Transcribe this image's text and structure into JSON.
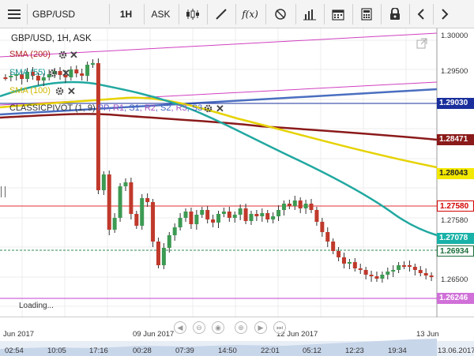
{
  "toolbar": {
    "symbol": "GBP/USD",
    "timeframe": "1H",
    "price_type": "ASK",
    "function_label": "f(x)"
  },
  "chart": {
    "title": "GBP/USD, 1H, ASK",
    "loading": "Loading...",
    "indicators": [
      {
        "label": "SMA (200)",
        "color": "#b22222"
      },
      {
        "label": "SMA (55)",
        "color": "#20a0a0"
      },
      {
        "label": "SMA (100)",
        "color": "#e0c800"
      }
    ],
    "pivot": {
      "label_prefix": "CLASSICPIVOT (1, 9)",
      "items": [
        {
          "label": "PP",
          "color": "#6a5acd"
        },
        {
          "label": "R1",
          "color": "#a050c0"
        },
        {
          "label": "S1",
          "color": "#4060c0"
        },
        {
          "label": "R2",
          "color": "#a050c0"
        },
        {
          "label": "S2",
          "color": "#4060c0"
        },
        {
          "label": "R3",
          "color": "#a050c0"
        },
        {
          "label": "S3",
          "color": "#4060c0"
        }
      ]
    }
  },
  "price_axis": {
    "ticks": [
      "1.30000",
      "1.29500",
      "1.27580",
      "1.26500"
    ],
    "tags": [
      {
        "value": "1.29030",
        "bg": "#1a2f9c",
        "fg": "#ffffff"
      },
      {
        "value": "1.28471",
        "bg": "#8b1a1a",
        "fg": "#ffffff"
      },
      {
        "value": "1.28043",
        "bg": "#f3e800",
        "fg": "#222222"
      },
      {
        "value": "1.27580",
        "bg": "#ffffff",
        "fg": "#d40000"
      },
      {
        "value": "1.27078",
        "bg": "#18b2a8",
        "fg": "#ffffff"
      },
      {
        "value": "1.26934",
        "bg": "#ffffff",
        "fg": "#1b6e3a"
      },
      {
        "value": "1.26246",
        "bg": "#d070d8",
        "fg": "#ffffff"
      }
    ]
  },
  "time_axis": {
    "day_labels": [
      "Jun 2017",
      "09 Jun 2017",
      "12 Jun 2017",
      "13 Jun"
    ],
    "time_labels": [
      "02:54",
      "10:05",
      "17:16",
      "00:28",
      "07:39",
      "14:50",
      "22:01",
      "05:12",
      "12:23",
      "19:34",
      "13.06.2017"
    ]
  },
  "colors": {
    "bull": "#3c9a52",
    "bear": "#c0392b",
    "sma200": "#8b1a1a",
    "sma55": "#20a8a0",
    "sma100": "#e6d200",
    "pivot_line": "#1a2f9c",
    "resist_line": "#d040c0"
  }
}
